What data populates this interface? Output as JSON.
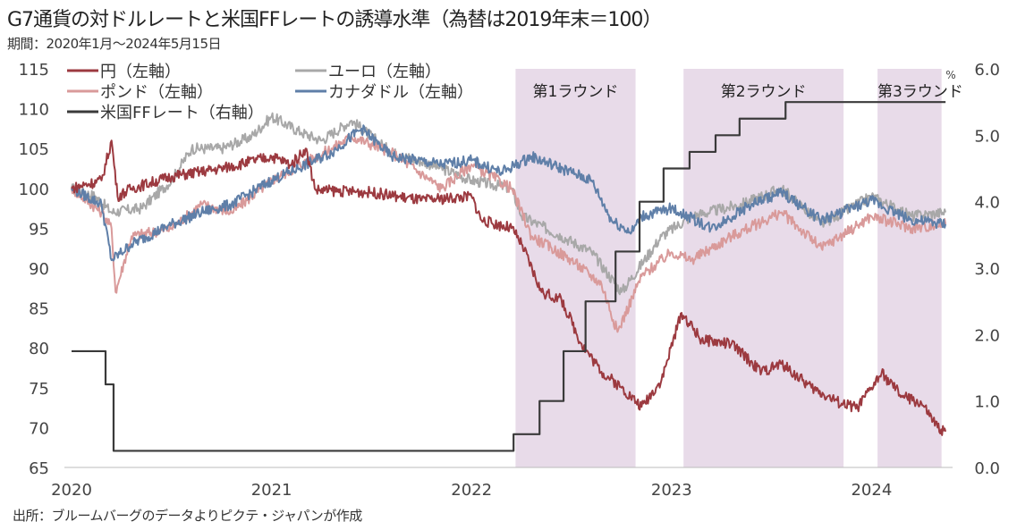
{
  "title": "G7通貨の対ドルレートと米国FFレートの誘導水準（為替は2019年末＝100）",
  "subtitle": "期間：2020年1月～2024年5月15日",
  "source": "出所：ブルームバーグのデータよりピクテ・ジャパンが作成",
  "chart_data": {
    "type": "line",
    "title": "G7通貨の対ドルレートと米国FFレートの誘導水準（為替は2019年末＝100）",
    "xlabel": "",
    "ylabel_left": "",
    "ylabel_right": "%",
    "xlim": [
      2020.0,
      2024.37
    ],
    "ylim_left": [
      65,
      115
    ],
    "ylim_right": [
      0,
      6
    ],
    "x_ticks": [
      2020,
      2021,
      2022,
      2023,
      2024
    ],
    "x_tick_labels": [
      "2020",
      "2021",
      "2022",
      "2023",
      "2024"
    ],
    "y_left_ticks": [
      "115",
      "110",
      "105",
      "100",
      "95",
      "90",
      "85",
      "80",
      "75",
      "70",
      "65"
    ],
    "y_right_ticks": [
      "6.0",
      "5.0",
      "4.0",
      "3.0",
      "2.0",
      "1.0",
      "0.0"
    ],
    "legend_placement": "top-left",
    "shaded_periods": [
      {
        "label": "第1ラウンド",
        "start": 2022.22,
        "end": 2022.82
      },
      {
        "label": "第2ラウンド",
        "start": 2023.06,
        "end": 2023.86
      },
      {
        "label": "第3ラウンド",
        "start": 2024.03,
        "end": 2024.35
      }
    ],
    "series": [
      {
        "name": "ユーロ（左軸）",
        "axis": "left",
        "color": "#a8a8a8",
        "points": [
          [
            2020.0,
            100
          ],
          [
            2020.12,
            99
          ],
          [
            2020.2,
            97
          ],
          [
            2020.35,
            97.5
          ],
          [
            2020.5,
            101
          ],
          [
            2020.6,
            105
          ],
          [
            2020.75,
            105
          ],
          [
            2020.9,
            106.5
          ],
          [
            2021.0,
            109
          ],
          [
            2021.15,
            107
          ],
          [
            2021.25,
            106
          ],
          [
            2021.4,
            108.5
          ],
          [
            2021.6,
            104.5
          ],
          [
            2021.8,
            103
          ],
          [
            2022.0,
            101
          ],
          [
            2022.2,
            100
          ],
          [
            2022.25,
            96.5
          ],
          [
            2022.45,
            94
          ],
          [
            2022.6,
            92
          ],
          [
            2022.75,
            87
          ],
          [
            2022.95,
            94
          ],
          [
            2023.1,
            96.5
          ],
          [
            2023.35,
            98
          ],
          [
            2023.55,
            100
          ],
          [
            2023.75,
            95.5
          ],
          [
            2024.0,
            99
          ],
          [
            2024.2,
            96.5
          ],
          [
            2024.37,
            97
          ]
        ]
      },
      {
        "name": "ポンド（左軸）",
        "axis": "left",
        "color": "#d99a9a",
        "points": [
          [
            2020.0,
            100
          ],
          [
            2020.15,
            97
          ],
          [
            2020.2,
            95
          ],
          [
            2020.22,
            87
          ],
          [
            2020.3,
            94
          ],
          [
            2020.5,
            95
          ],
          [
            2020.65,
            98
          ],
          [
            2020.8,
            97
          ],
          [
            2021.0,
            101
          ],
          [
            2021.3,
            105
          ],
          [
            2021.4,
            106.5
          ],
          [
            2021.6,
            104.5
          ],
          [
            2021.85,
            100
          ],
          [
            2022.0,
            103
          ],
          [
            2022.2,
            100
          ],
          [
            2022.3,
            94
          ],
          [
            2022.5,
            91
          ],
          [
            2022.65,
            88
          ],
          [
            2022.73,
            82
          ],
          [
            2022.85,
            89
          ],
          [
            2023.0,
            92
          ],
          [
            2023.1,
            91
          ],
          [
            2023.3,
            94
          ],
          [
            2023.55,
            97
          ],
          [
            2023.75,
            92.5
          ],
          [
            2024.0,
            96.5
          ],
          [
            2024.2,
            95
          ],
          [
            2024.37,
            95.5
          ]
        ]
      },
      {
        "name": "カナダドル（左軸）",
        "axis": "left",
        "color": "#5f7fa8",
        "points": [
          [
            2020.0,
            100
          ],
          [
            2020.15,
            98
          ],
          [
            2020.2,
            91
          ],
          [
            2020.3,
            93
          ],
          [
            2020.5,
            95.5
          ],
          [
            2020.65,
            97
          ],
          [
            2020.8,
            98
          ],
          [
            2021.0,
            101
          ],
          [
            2021.3,
            104.5
          ],
          [
            2021.45,
            107.5
          ],
          [
            2021.6,
            104
          ],
          [
            2021.85,
            103
          ],
          [
            2022.0,
            103.5
          ],
          [
            2022.15,
            102
          ],
          [
            2022.3,
            104
          ],
          [
            2022.5,
            102
          ],
          [
            2022.6,
            101
          ],
          [
            2022.7,
            96
          ],
          [
            2022.8,
            94.5
          ],
          [
            2022.85,
            96.5
          ],
          [
            2023.0,
            97.5
          ],
          [
            2023.2,
            95
          ],
          [
            2023.4,
            98
          ],
          [
            2023.55,
            99.5
          ],
          [
            2023.75,
            96
          ],
          [
            2024.0,
            98.5
          ],
          [
            2024.2,
            96
          ],
          [
            2024.37,
            95.5
          ]
        ]
      },
      {
        "name": "円（左軸）",
        "axis": "left",
        "color": "#9c3a40",
        "points": [
          [
            2020.0,
            100
          ],
          [
            2020.15,
            101
          ],
          [
            2020.2,
            106
          ],
          [
            2020.23,
            99
          ],
          [
            2020.3,
            100
          ],
          [
            2020.5,
            101.5
          ],
          [
            2020.75,
            102.5
          ],
          [
            2021.0,
            104
          ],
          [
            2021.1,
            103
          ],
          [
            2021.17,
            105
          ],
          [
            2021.22,
            99.8
          ],
          [
            2021.5,
            99.5
          ],
          [
            2021.75,
            98.5
          ],
          [
            2022.0,
            99
          ],
          [
            2022.05,
            96
          ],
          [
            2022.2,
            95
          ],
          [
            2022.25,
            93
          ],
          [
            2022.35,
            87
          ],
          [
            2022.45,
            86
          ],
          [
            2022.55,
            80.5
          ],
          [
            2022.65,
            77
          ],
          [
            2022.75,
            75
          ],
          [
            2022.85,
            72.6
          ],
          [
            2022.95,
            76
          ],
          [
            2023.05,
            84.4
          ],
          [
            2023.15,
            81
          ],
          [
            2023.3,
            80.5
          ],
          [
            2023.45,
            77
          ],
          [
            2023.55,
            78
          ],
          [
            2023.7,
            75
          ],
          [
            2023.85,
            73
          ],
          [
            2023.93,
            72.5
          ],
          [
            2024.0,
            75
          ],
          [
            2024.05,
            76.8
          ],
          [
            2024.15,
            74
          ],
          [
            2024.25,
            73
          ],
          [
            2024.33,
            70
          ],
          [
            2024.37,
            69.5
          ]
        ]
      },
      {
        "name": "米国FFレート（右軸）",
        "axis": "right",
        "color": "#3a3a3a",
        "step": true,
        "points": [
          [
            2020.0,
            1.75
          ],
          [
            2020.17,
            1.25
          ],
          [
            2020.21,
            0.25
          ],
          [
            2022.21,
            0.5
          ],
          [
            2022.34,
            1.0
          ],
          [
            2022.46,
            1.75
          ],
          [
            2022.57,
            2.5
          ],
          [
            2022.72,
            3.25
          ],
          [
            2022.84,
            4.0
          ],
          [
            2022.96,
            4.5
          ],
          [
            2023.09,
            4.75
          ],
          [
            2023.22,
            5.0
          ],
          [
            2023.34,
            5.25
          ],
          [
            2023.57,
            5.5
          ],
          [
            2024.37,
            5.5
          ]
        ]
      }
    ]
  }
}
